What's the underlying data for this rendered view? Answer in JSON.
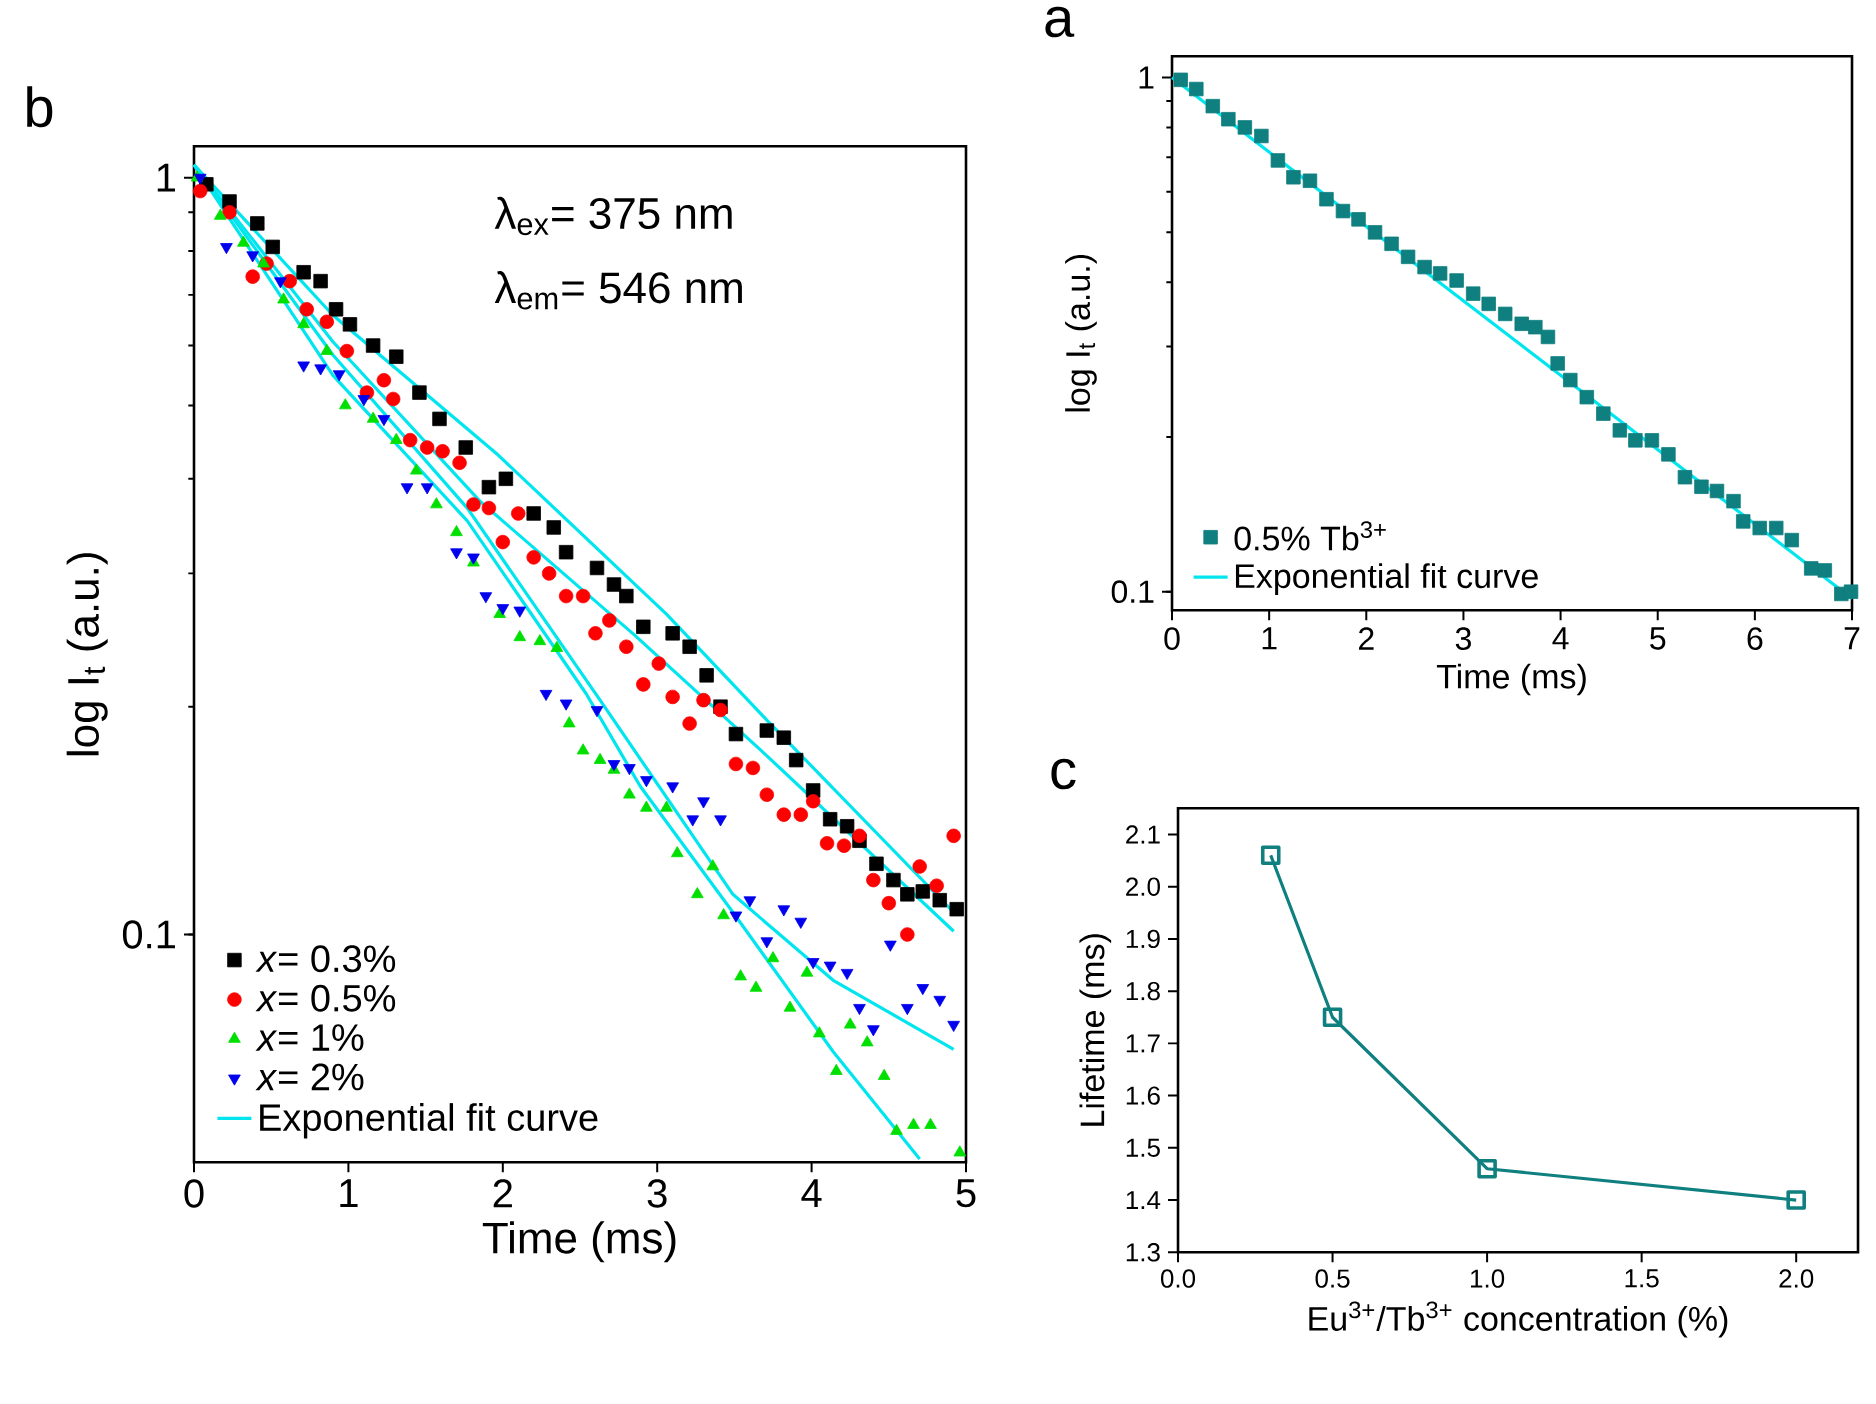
{
  "chart_data": [
    {
      "type": "scatter",
      "title": "b",
      "xlabel": "Time (ms)",
      "ylabel": "log I$_{t}$ (a.u.)",
      "log": "y",
      "xlim": [
        0,
        5
      ],
      "ylim": [
        0.05,
        1.1
      ],
      "xticks": [
        0,
        1,
        2,
        3,
        4,
        5
      ],
      "yticks": [
        0.1,
        1
      ],
      "legend": "bottom left",
      "annotations": [
        "λ$_{ex}$= 375 nm",
        "λ$_{em}$= 546 nm"
      ],
      "series": [
        {
          "name": "*x*= 0.3%",
          "color": "#000000",
          "marker": "square",
          "x": [
            0.08,
            0.23,
            0.41,
            0.51,
            0.71,
            0.82,
            0.92,
            1.01,
            1.16,
            1.31,
            1.46,
            1.59,
            1.76,
            1.91,
            2.02,
            2.2,
            2.33,
            2.41,
            2.61,
            2.72,
            2.8,
            2.91,
            3.1,
            3.21,
            3.32,
            3.41,
            3.51,
            3.71,
            3.82,
            3.9,
            4.01,
            4.12,
            4.23,
            4.31,
            4.42,
            4.53,
            4.62,
            4.72,
            4.83,
            4.94
          ],
          "values": [
            0.98,
            0.93,
            0.87,
            0.81,
            0.75,
            0.73,
            0.67,
            0.64,
            0.6,
            0.58,
            0.52,
            0.48,
            0.44,
            0.39,
            0.4,
            0.36,
            0.345,
            0.32,
            0.305,
            0.29,
            0.28,
            0.255,
            0.25,
            0.24,
            0.22,
            0.2,
            0.184,
            0.186,
            0.182,
            0.17,
            0.155,
            0.142,
            0.139,
            0.133,
            0.124,
            0.118,
            0.113,
            0.114,
            0.111,
            0.108
          ]
        },
        {
          "name": "*x*= 0.5%",
          "color": "#ff0000",
          "marker": "circle",
          "x": [
            0.04,
            0.23,
            0.38,
            0.47,
            0.62,
            0.73,
            0.86,
            0.99,
            1.12,
            1.23,
            1.29,
            1.4,
            1.51,
            1.61,
            1.72,
            1.81,
            1.91,
            2.0,
            2.1,
            2.2,
            2.3,
            2.41,
            2.52,
            2.6,
            2.69,
            2.8,
            2.91,
            3.01,
            3.1,
            3.21,
            3.3,
            3.41,
            3.51,
            3.62,
            3.71,
            3.82,
            3.93,
            4.01,
            4.1,
            4.21,
            4.31,
            4.4,
            4.5,
            4.62,
            4.7,
            4.81,
            4.92
          ],
          "values": [
            0.96,
            0.9,
            0.74,
            0.77,
            0.73,
            0.67,
            0.645,
            0.59,
            0.52,
            0.54,
            0.51,
            0.45,
            0.44,
            0.435,
            0.42,
            0.37,
            0.366,
            0.33,
            0.36,
            0.315,
            0.3,
            0.28,
            0.28,
            0.25,
            0.26,
            0.24,
            0.214,
            0.228,
            0.206,
            0.19,
            0.204,
            0.198,
            0.168,
            0.166,
            0.153,
            0.144,
            0.144,
            0.15,
            0.132,
            0.131,
            0.135,
            0.118,
            0.11,
            0.1,
            0.123,
            0.116,
            0.135
          ]
        },
        {
          "name": "*x*= 1%",
          "color": "#00e000",
          "marker": "triangle",
          "x": [
            0.02,
            0.17,
            0.32,
            0.45,
            0.58,
            0.71,
            0.86,
            0.98,
            1.16,
            1.31,
            1.44,
            1.57,
            1.7,
            1.81,
            1.98,
            2.11,
            2.24,
            2.35,
            2.43,
            2.52,
            2.63,
            2.72,
            2.82,
            2.93,
            3.06,
            3.13,
            3.26,
            3.36,
            3.43,
            3.54,
            3.64,
            3.75,
            3.86,
            3.97,
            4.05,
            4.16,
            4.25,
            4.36,
            4.47,
            4.55,
            4.66,
            4.77,
            4.96
          ],
          "values": [
            1.0,
            0.89,
            0.82,
            0.77,
            0.69,
            0.64,
            0.59,
            0.5,
            0.48,
            0.45,
            0.41,
            0.37,
            0.34,
            0.31,
            0.265,
            0.247,
            0.244,
            0.239,
            0.19,
            0.175,
            0.17,
            0.165,
            0.153,
            0.147,
            0.147,
            0.128,
            0.113,
            0.123,
            0.106,
            0.088,
            0.085,
            0.093,
            0.08,
            0.089,
            0.074,
            0.066,
            0.076,
            0.072,
            0.065,
            0.055,
            0.056,
            0.056,
            0.0515
          ]
        },
        {
          "name": "*x*= 2%",
          "color": "#0000ee",
          "marker": "triangle-down",
          "x": [
            0.04,
            0.21,
            0.38,
            0.56,
            0.71,
            0.82,
            0.94,
            1.1,
            1.23,
            1.38,
            1.51,
            1.7,
            1.81,
            1.89,
            2.0,
            2.11,
            2.28,
            2.41,
            2.61,
            2.72,
            2.82,
            2.93,
            3.1,
            3.23,
            3.3,
            3.41,
            3.51,
            3.6,
            3.71,
            3.82,
            3.93,
            4.01,
            4.12,
            4.23,
            4.31,
            4.4,
            4.51,
            4.62,
            4.72,
            4.83,
            4.92
          ],
          "values": [
            1.0,
            0.81,
            0.79,
            0.73,
            0.565,
            0.56,
            0.55,
            0.51,
            0.48,
            0.39,
            0.39,
            0.32,
            0.315,
            0.28,
            0.27,
            0.268,
            0.208,
            0.202,
            0.198,
            0.168,
            0.166,
            0.16,
            0.157,
            0.142,
            0.15,
            0.142,
            0.106,
            0.111,
            0.098,
            0.108,
            0.104,
            0.092,
            0.091,
            0.089,
            0.08,
            0.075,
            0.097,
            0.08,
            0.085,
            0.082,
            0.076
          ]
        },
        {
          "name": "Exponential fit curve",
          "type": "line",
          "color": "#00e5ee",
          "marker": "none",
          "x": [
            0,
            0.9,
            1.97,
            3.06,
            3.71,
            4.92
          ],
          "values": [
            1.04,
            0.658,
            0.43,
            0.265,
            0.192,
            0.107
          ]
        },
        {
          "type": "line",
          "color": "#00e5ee",
          "marker": "none",
          "x": [
            0,
            0.9,
            1.85,
            2.85,
            3.7,
            4.92
          ],
          "values": [
            1.04,
            0.607,
            0.374,
            0.249,
            0.173,
            0.101
          ]
        },
        {
          "type": "line",
          "color": "#00e5ee",
          "marker": "none",
          "x": [
            0,
            0.9,
            1.77,
            2.54,
            2.89,
            3.49,
            4.14,
            4.7
          ],
          "values": [
            1.04,
            0.548,
            0.352,
            0.208,
            0.157,
            0.107,
            0.07,
            0.0505
          ]
        },
        {
          "type": "line",
          "color": "#00e5ee",
          "marker": "none",
          "x": [
            0,
            0.9,
            1.77,
            2.63,
            3.49,
            4.14,
            4.92
          ],
          "values": [
            1.04,
            0.583,
            0.366,
            0.204,
            0.113,
            0.087,
            0.0705
          ]
        }
      ]
    },
    {
      "type": "scatter",
      "title": "a",
      "xlabel": "Time (ms)",
      "ylabel": "log I$_{t}$ (a.u.)",
      "log": "y",
      "xlim": [
        0,
        7
      ],
      "ylim": [
        0.092,
        1.1
      ],
      "xticks": [
        0,
        1,
        2,
        3,
        4,
        5,
        6,
        7
      ],
      "yticks": [
        0.1,
        1
      ],
      "legend": "bottom left",
      "series": [
        {
          "name": "0.5% Tb$^{3+}$",
          "color": "#0f7f7f",
          "marker": "square",
          "x": [
            0.09,
            0.25,
            0.42,
            0.58,
            0.75,
            0.92,
            1.09,
            1.25,
            1.42,
            1.59,
            1.76,
            1.92,
            2.09,
            2.26,
            2.43,
            2.6,
            2.76,
            2.93,
            3.1,
            3.26,
            3.43,
            3.6,
            3.74,
            3.87,
            3.97,
            4.1,
            4.27,
            4.44,
            4.61,
            4.77,
            4.94,
            5.11,
            5.28,
            5.45,
            5.61,
            5.78,
            5.88,
            6.05,
            6.22,
            6.38,
            6.58,
            6.72,
            6.89,
            6.99
          ],
          "values": [
            0.99,
            0.95,
            0.88,
            0.83,
            0.8,
            0.77,
            0.69,
            0.64,
            0.63,
            0.58,
            0.55,
            0.53,
            0.5,
            0.475,
            0.448,
            0.428,
            0.416,
            0.403,
            0.38,
            0.363,
            0.347,
            0.332,
            0.327,
            0.313,
            0.278,
            0.258,
            0.239,
            0.222,
            0.206,
            0.197,
            0.197,
            0.185,
            0.167,
            0.16,
            0.157,
            0.15,
            0.137,
            0.133,
            0.133,
            0.126,
            0.111,
            0.11,
            0.099,
            0.1
          ]
        },
        {
          "name": "Exponential fit curve",
          "type": "line",
          "color": "#00e5ee",
          "marker": "none",
          "x": [
            0,
            7
          ],
          "values": [
            1.0,
            0.097
          ]
        }
      ]
    },
    {
      "type": "line",
      "title": "c",
      "xlabel": "Eu$^{3+}$/Tb$^{3+}$ concentration (%)",
      "ylabel": "Lifetime (ms)",
      "marker": "square",
      "xlim": [
        0,
        2.2
      ],
      "ylim": [
        1.3,
        2.15
      ],
      "xticks": [
        {
          "value": 0,
          "label": "0.0"
        },
        0.5,
        {
          "value": 1,
          "label": "1.0"
        },
        1.5,
        {
          "value": 2,
          "label": "2.0"
        }
      ],
      "yticks": [
        1.3,
        1.4,
        1.5,
        1.6,
        1.7,
        1.8,
        1.9,
        {
          "value": 2,
          "label": "2.0"
        },
        2.1
      ],
      "x": [
        0.3,
        0.5,
        1.0,
        2.0
      ],
      "values": [
        2.06,
        1.75,
        1.46,
        1.4
      ],
      "color": "#0f7f7f"
    }
  ]
}
